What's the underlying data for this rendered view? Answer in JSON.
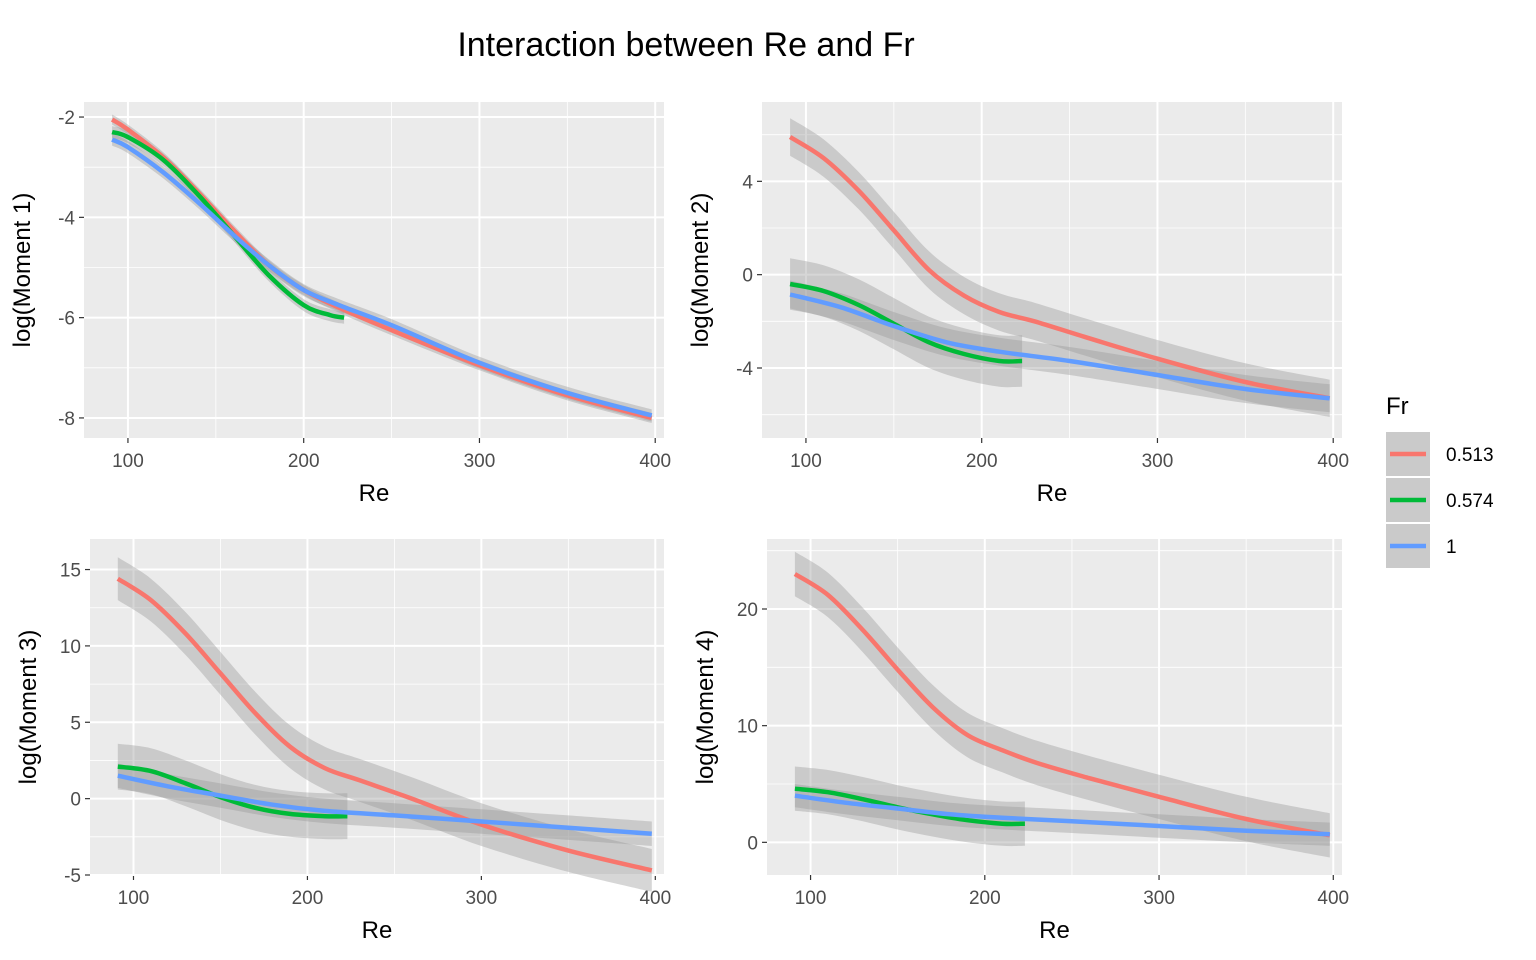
{
  "title": "Interaction between Re and Fr",
  "legend": {
    "title": "Fr",
    "entries": [
      {
        "label": "0.513",
        "color": "#F8766D"
      },
      {
        "label": "0.574",
        "color": "#00BA38"
      },
      {
        "label": "1",
        "color": "#619CFF"
      }
    ]
  },
  "colors": {
    "panel_background": "#EBEBEB",
    "grid_major": "#FFFFFF",
    "ribbon": "#999999",
    "tick_text": "#4D4D4D"
  },
  "chart_data": [
    {
      "type": "line",
      "xlabel": "Re",
      "ylabel": "log(Moment 1)",
      "xlim": [
        75,
        405
      ],
      "ylim": [
        -8.4,
        -1.7
      ],
      "xticks": [
        100,
        200,
        300,
        400
      ],
      "yticks": [
        -8,
        -6,
        -4,
        -2
      ],
      "xtick_labels": [
        "100",
        "200",
        "300",
        "400"
      ],
      "ytick_labels": [
        "-8",
        "-6",
        "-4",
        "-2"
      ],
      "series": [
        {
          "name": "0.513",
          "x": [
            91,
            100,
            120,
            140,
            160,
            180,
            200,
            220,
            250,
            300,
            350,
            398
          ],
          "y": [
            -2.05,
            -2.25,
            -2.8,
            -3.5,
            -4.25,
            -4.95,
            -5.45,
            -5.8,
            -6.25,
            -6.95,
            -7.55,
            -8.0
          ],
          "band": 0.1
        },
        {
          "name": "0.574",
          "x": [
            91,
            100,
            120,
            140,
            160,
            180,
            200,
            215,
            223
          ],
          "y": [
            -2.3,
            -2.4,
            -2.85,
            -3.55,
            -4.35,
            -5.15,
            -5.75,
            -5.95,
            -6.0
          ],
          "band": 0.12
        },
        {
          "name": "1",
          "x": [
            91,
            100,
            120,
            140,
            160,
            180,
            200,
            220,
            250,
            300,
            350,
            398
          ],
          "y": [
            -2.45,
            -2.6,
            -3.1,
            -3.7,
            -4.35,
            -4.95,
            -5.45,
            -5.75,
            -6.15,
            -6.9,
            -7.5,
            -7.95
          ],
          "band": 0.12
        }
      ]
    },
    {
      "type": "line",
      "xlabel": "Re",
      "ylabel": "log(Moment 2)",
      "xlim": [
        75,
        405
      ],
      "ylim": [
        -7.0,
        7.4
      ],
      "xticks": [
        100,
        200,
        300,
        400
      ],
      "yticks": [
        -4,
        0,
        4
      ],
      "xtick_labels": [
        "100",
        "200",
        "300",
        "400"
      ],
      "ytick_labels": [
        "-4",
        "0",
        "4"
      ],
      "series": [
        {
          "name": "0.513",
          "x": [
            91,
            110,
            130,
            150,
            170,
            190,
            210,
            230,
            260,
            300,
            350,
            398
          ],
          "y": [
            5.9,
            5.0,
            3.6,
            1.9,
            0.2,
            -0.9,
            -1.6,
            -2.0,
            -2.7,
            -3.6,
            -4.6,
            -5.3
          ],
          "band": 0.8
        },
        {
          "name": "0.574",
          "x": [
            91,
            110,
            130,
            150,
            170,
            190,
            210,
            223
          ],
          "y": [
            -0.4,
            -0.7,
            -1.3,
            -2.1,
            -2.9,
            -3.4,
            -3.7,
            -3.7
          ],
          "band": 1.1
        },
        {
          "name": "1",
          "x": [
            91,
            120,
            150,
            180,
            210,
            250,
            300,
            350,
            398
          ],
          "y": [
            -0.85,
            -1.4,
            -2.2,
            -2.9,
            -3.3,
            -3.7,
            -4.3,
            -4.9,
            -5.3
          ],
          "band": 0.6
        }
      ]
    },
    {
      "type": "line",
      "xlabel": "Re",
      "ylabel": "log(Moment 3)",
      "xlim": [
        75,
        405
      ],
      "ylim": [
        -5.0,
        17.0
      ],
      "xticks": [
        100,
        200,
        300,
        400
      ],
      "yticks": [
        -5,
        0,
        5,
        10,
        15
      ],
      "xtick_labels": [
        "100",
        "200",
        "300",
        "400"
      ],
      "ytick_labels": [
        "-5",
        "0",
        "5",
        "10",
        "15"
      ],
      "series": [
        {
          "name": "0.513",
          "x": [
            91,
            110,
            130,
            150,
            170,
            190,
            210,
            230,
            260,
            300,
            350,
            398
          ],
          "y": [
            14.4,
            13.0,
            10.8,
            8.2,
            5.6,
            3.4,
            2.0,
            1.2,
            0.0,
            -1.7,
            -3.4,
            -4.7
          ],
          "band": 1.4
        },
        {
          "name": "0.574",
          "x": [
            91,
            110,
            130,
            150,
            170,
            190,
            210,
            223
          ],
          "y": [
            2.1,
            1.8,
            1.0,
            0.1,
            -0.6,
            -1.0,
            -1.15,
            -1.15
          ],
          "band": 1.5
        },
        {
          "name": "1",
          "x": [
            91,
            120,
            150,
            180,
            210,
            250,
            300,
            350,
            398
          ],
          "y": [
            1.5,
            0.8,
            0.2,
            -0.4,
            -0.8,
            -1.1,
            -1.5,
            -1.9,
            -2.3
          ],
          "band": 0.8
        }
      ]
    },
    {
      "type": "line",
      "xlabel": "Re",
      "ylabel": "log(Moment 4)",
      "xlim": [
        75,
        405
      ],
      "ylim": [
        -2.8,
        26.0
      ],
      "xticks": [
        100,
        200,
        300,
        400
      ],
      "yticks": [
        0,
        10,
        20
      ],
      "xtick_labels": [
        "100",
        "200",
        "300",
        "400"
      ],
      "ytick_labels": [
        "0",
        "10",
        "20"
      ],
      "series": [
        {
          "name": "0.513",
          "x": [
            91,
            110,
            130,
            150,
            170,
            190,
            210,
            230,
            260,
            300,
            350,
            398
          ],
          "y": [
            23.0,
            21.2,
            18.2,
            14.8,
            11.6,
            9.2,
            7.9,
            6.8,
            5.5,
            3.9,
            2.0,
            0.6
          ],
          "band": 1.9
        },
        {
          "name": "0.574",
          "x": [
            91,
            110,
            130,
            150,
            170,
            190,
            210,
            223
          ],
          "y": [
            4.6,
            4.3,
            3.7,
            3.0,
            2.4,
            1.9,
            1.6,
            1.6
          ],
          "band": 1.9
        },
        {
          "name": "1",
          "x": [
            91,
            120,
            150,
            180,
            210,
            250,
            300,
            350,
            398
          ],
          "y": [
            4.0,
            3.4,
            2.9,
            2.4,
            2.1,
            1.8,
            1.4,
            1.0,
            0.7
          ],
          "band": 1.0
        }
      ]
    }
  ]
}
